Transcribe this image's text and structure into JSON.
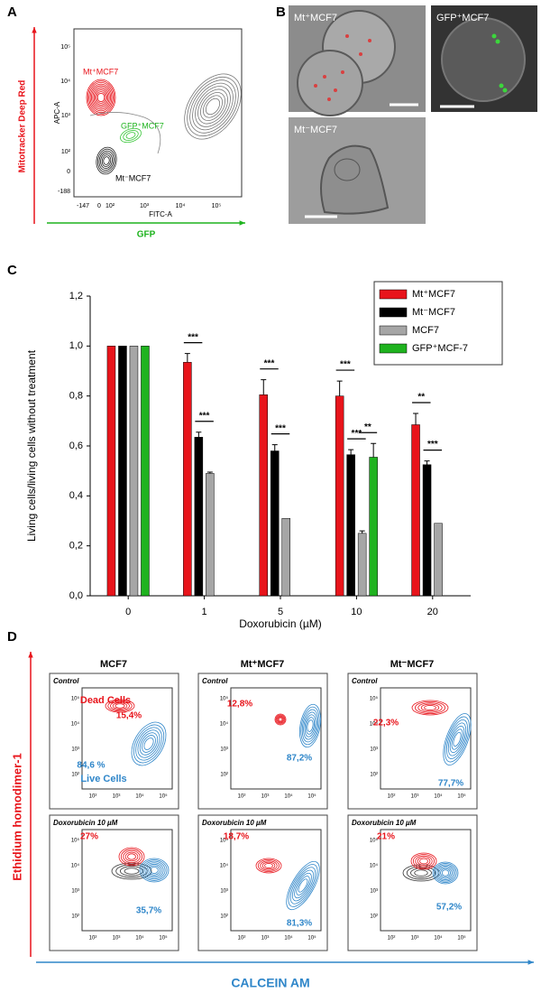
{
  "panel_a": {
    "letter": "A",
    "y_axis_title": "Mitotracker Deep Red",
    "x_axis_title": "GFP",
    "y_param": "APC-A",
    "x_param": "FITC-A",
    "yticks": [
      "10⁵",
      "10⁴",
      "10³",
      "10²",
      "0",
      "-188"
    ],
    "xticks": [
      "-147",
      "0",
      "10²",
      "10³",
      "10⁴",
      "10⁵"
    ],
    "populations": [
      "Mt⁺MCF7",
      "GFP⁺MCF7",
      "Mt⁻MCF7"
    ]
  },
  "panel_b": {
    "letter": "B",
    "images": [
      "Mt⁺MCF7",
      "GFP⁺MCF7",
      "Mt⁻MCF7"
    ]
  },
  "panel_c": {
    "letter": "C"
  },
  "chart_data": {
    "type": "bar",
    "x_label": "Doxorubicin (µM)",
    "y_label": "Living cells/living cells without treatment",
    "categories": [
      "0",
      "1",
      "5",
      "10",
      "20"
    ],
    "series": [
      {
        "name": "Mt⁺MCF7",
        "color": "#e8141b",
        "values": [
          1.0,
          0.935,
          0.805,
          0.8,
          0.685
        ],
        "errors": [
          null,
          0.035,
          0.06,
          0.06,
          0.045
        ]
      },
      {
        "name": "Mt⁻MCF7",
        "color": "#000000",
        "values": [
          1.0,
          0.635,
          0.58,
          0.565,
          0.525
        ],
        "errors": [
          null,
          0.02,
          0.025,
          0.02,
          0.015
        ]
      },
      {
        "name": "MCF7",
        "color": "#a6a6a6",
        "values": [
          1.0,
          0.49,
          0.31,
          0.25,
          0.29
        ],
        "errors": [
          null,
          0.005,
          null,
          0.01,
          null
        ]
      },
      {
        "name": "GFP⁺MCF-7",
        "color": "#1fb31f",
        "values": [
          1.0,
          null,
          null,
          0.555,
          null
        ],
        "errors": [
          null,
          null,
          null,
          0.055,
          null
        ]
      }
    ],
    "significance": [
      [
        null,
        null,
        null
      ],
      [
        "***",
        "***",
        null
      ],
      [
        "***",
        "***",
        null
      ],
      [
        "***",
        "***",
        "**"
      ],
      [
        "**",
        "***",
        null
      ]
    ],
    "ylim": [
      0,
      1.2
    ],
    "yticks": [
      {
        "value": 0,
        "label": "0,0"
      },
      {
        "value": 0.2,
        "label": "0,2"
      },
      {
        "value": 0.4,
        "label": "0,4"
      },
      {
        "value": 0.6,
        "label": "0,6"
      },
      {
        "value": 0.8,
        "label": "0,8"
      },
      {
        "value": 1.0,
        "label": "1,0"
      },
      {
        "value": 1.2,
        "label": "1,2"
      }
    ],
    "grid": false,
    "legend": "top-right"
  },
  "panel_d": {
    "letter": "D",
    "y_axis_title": "Ethidium homodimer-1",
    "x_axis_title": "CALCEIN AM",
    "columns": [
      "MCF7",
      "Mt⁺MCF7",
      "Mt⁻MCF7"
    ],
    "conditions": [
      "Control",
      "Doxorubicin 10 µM"
    ],
    "gates": [
      "Dead Cells",
      "Live Cells"
    ],
    "yticks": [
      "10⁵",
      "10⁴",
      "10³",
      "10²"
    ],
    "xticks": [
      "10²",
      "10³",
      "10⁴",
      "10⁵"
    ],
    "percentages": [
      [
        [
          "15,4%",
          "84,6 %"
        ],
        [
          "12,8%",
          "87,2%"
        ],
        [
          "22,3%",
          "77,7%"
        ]
      ],
      [
        [
          "27%",
          "35,7%"
        ],
        [
          "18,7%",
          "81,3%"
        ],
        [
          "21%",
          "57,2%"
        ]
      ]
    ]
  }
}
